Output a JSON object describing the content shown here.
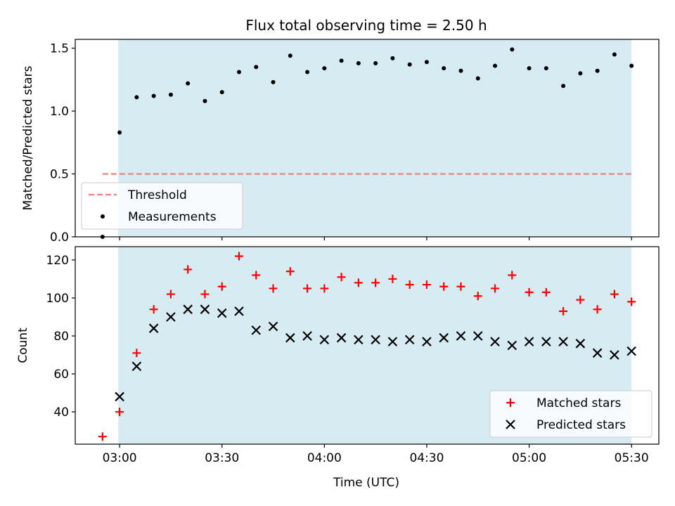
{
  "title": "Flux total observing time = 2.50 h",
  "x_ticks": [
    {
      "t": 180,
      "label": "03:00"
    },
    {
      "t": 210,
      "label": "03:30"
    },
    {
      "t": 240,
      "label": "04:00"
    },
    {
      "t": 270,
      "label": "04:30"
    },
    {
      "t": 300,
      "label": "05:00"
    },
    {
      "t": 330,
      "label": "05:30"
    }
  ],
  "xlabel": "Time (UTC)",
  "xlim": [
    167,
    338
  ],
  "shade": {
    "start": 179.6,
    "end": 330,
    "color": "#add8e6"
  },
  "colors": {
    "matched": "#ff0000",
    "predicted": "#000000",
    "threshold": "#f08080",
    "measurement": "#000000"
  },
  "chart_data": [
    {
      "type": "scatter",
      "ylabel": "Matched/Predicted stars",
      "ylim": [
        0,
        1.57
      ],
      "y_ticks": [
        "0.0",
        "0.5",
        "1.0",
        "1.5"
      ],
      "y_tick_values": [
        0,
        0.5,
        1.0,
        1.5
      ],
      "threshold": {
        "value": 0.5,
        "x_range": [
          175,
          330
        ]
      },
      "x": [
        175,
        180,
        185,
        190,
        195,
        200,
        205,
        210,
        215,
        220,
        225,
        230,
        235,
        240,
        245,
        250,
        255,
        260,
        265,
        270,
        275,
        280,
        285,
        290,
        295,
        300,
        305,
        310,
        315,
        320,
        325,
        330
      ],
      "series": [
        {
          "name": "Measurements",
          "values": [
            0.0,
            0.83,
            1.11,
            1.12,
            1.13,
            1.22,
            1.08,
            1.15,
            1.31,
            1.35,
            1.23,
            1.44,
            1.31,
            1.34,
            1.4,
            1.38,
            1.38,
            1.42,
            1.37,
            1.39,
            1.34,
            1.32,
            1.26,
            1.36,
            1.49,
            1.34,
            1.34,
            1.2,
            1.3,
            1.32,
            1.45,
            1.36
          ]
        }
      ],
      "legend": {
        "position": "lower-left",
        "entries": [
          "Threshold",
          "Measurements"
        ]
      }
    },
    {
      "type": "scatter",
      "ylabel": "Count",
      "ylim": [
        23,
        127
      ],
      "y_ticks": [
        "40",
        "60",
        "80",
        "100",
        "120"
      ],
      "y_tick_values": [
        40,
        60,
        80,
        100,
        120
      ],
      "x": [
        175,
        180,
        185,
        190,
        195,
        200,
        205,
        210,
        215,
        220,
        225,
        230,
        235,
        240,
        245,
        250,
        255,
        260,
        265,
        270,
        275,
        280,
        285,
        290,
        295,
        300,
        305,
        310,
        315,
        320,
        325,
        330
      ],
      "series": [
        {
          "name": "Matched stars",
          "marker": "plus",
          "values": [
            27,
            40,
            71,
            94,
            102,
            115,
            102,
            106,
            122,
            112,
            105,
            114,
            105,
            105,
            111,
            108,
            108,
            110,
            107,
            107,
            106,
            106,
            101,
            105,
            112,
            103,
            103,
            93,
            99,
            94,
            102,
            98
          ]
        },
        {
          "name": "Predicted stars",
          "marker": "x",
          "values": [
            null,
            48,
            64,
            84,
            90,
            94,
            94,
            92,
            93,
            83,
            85,
            79,
            80,
            78,
            79,
            78,
            78,
            77,
            78,
            77,
            79,
            80,
            80,
            77,
            75,
            77,
            77,
            77,
            76,
            71,
            70,
            72
          ]
        }
      ],
      "legend": {
        "position": "lower-right",
        "entries": [
          "Matched stars",
          "Predicted stars"
        ]
      }
    }
  ]
}
